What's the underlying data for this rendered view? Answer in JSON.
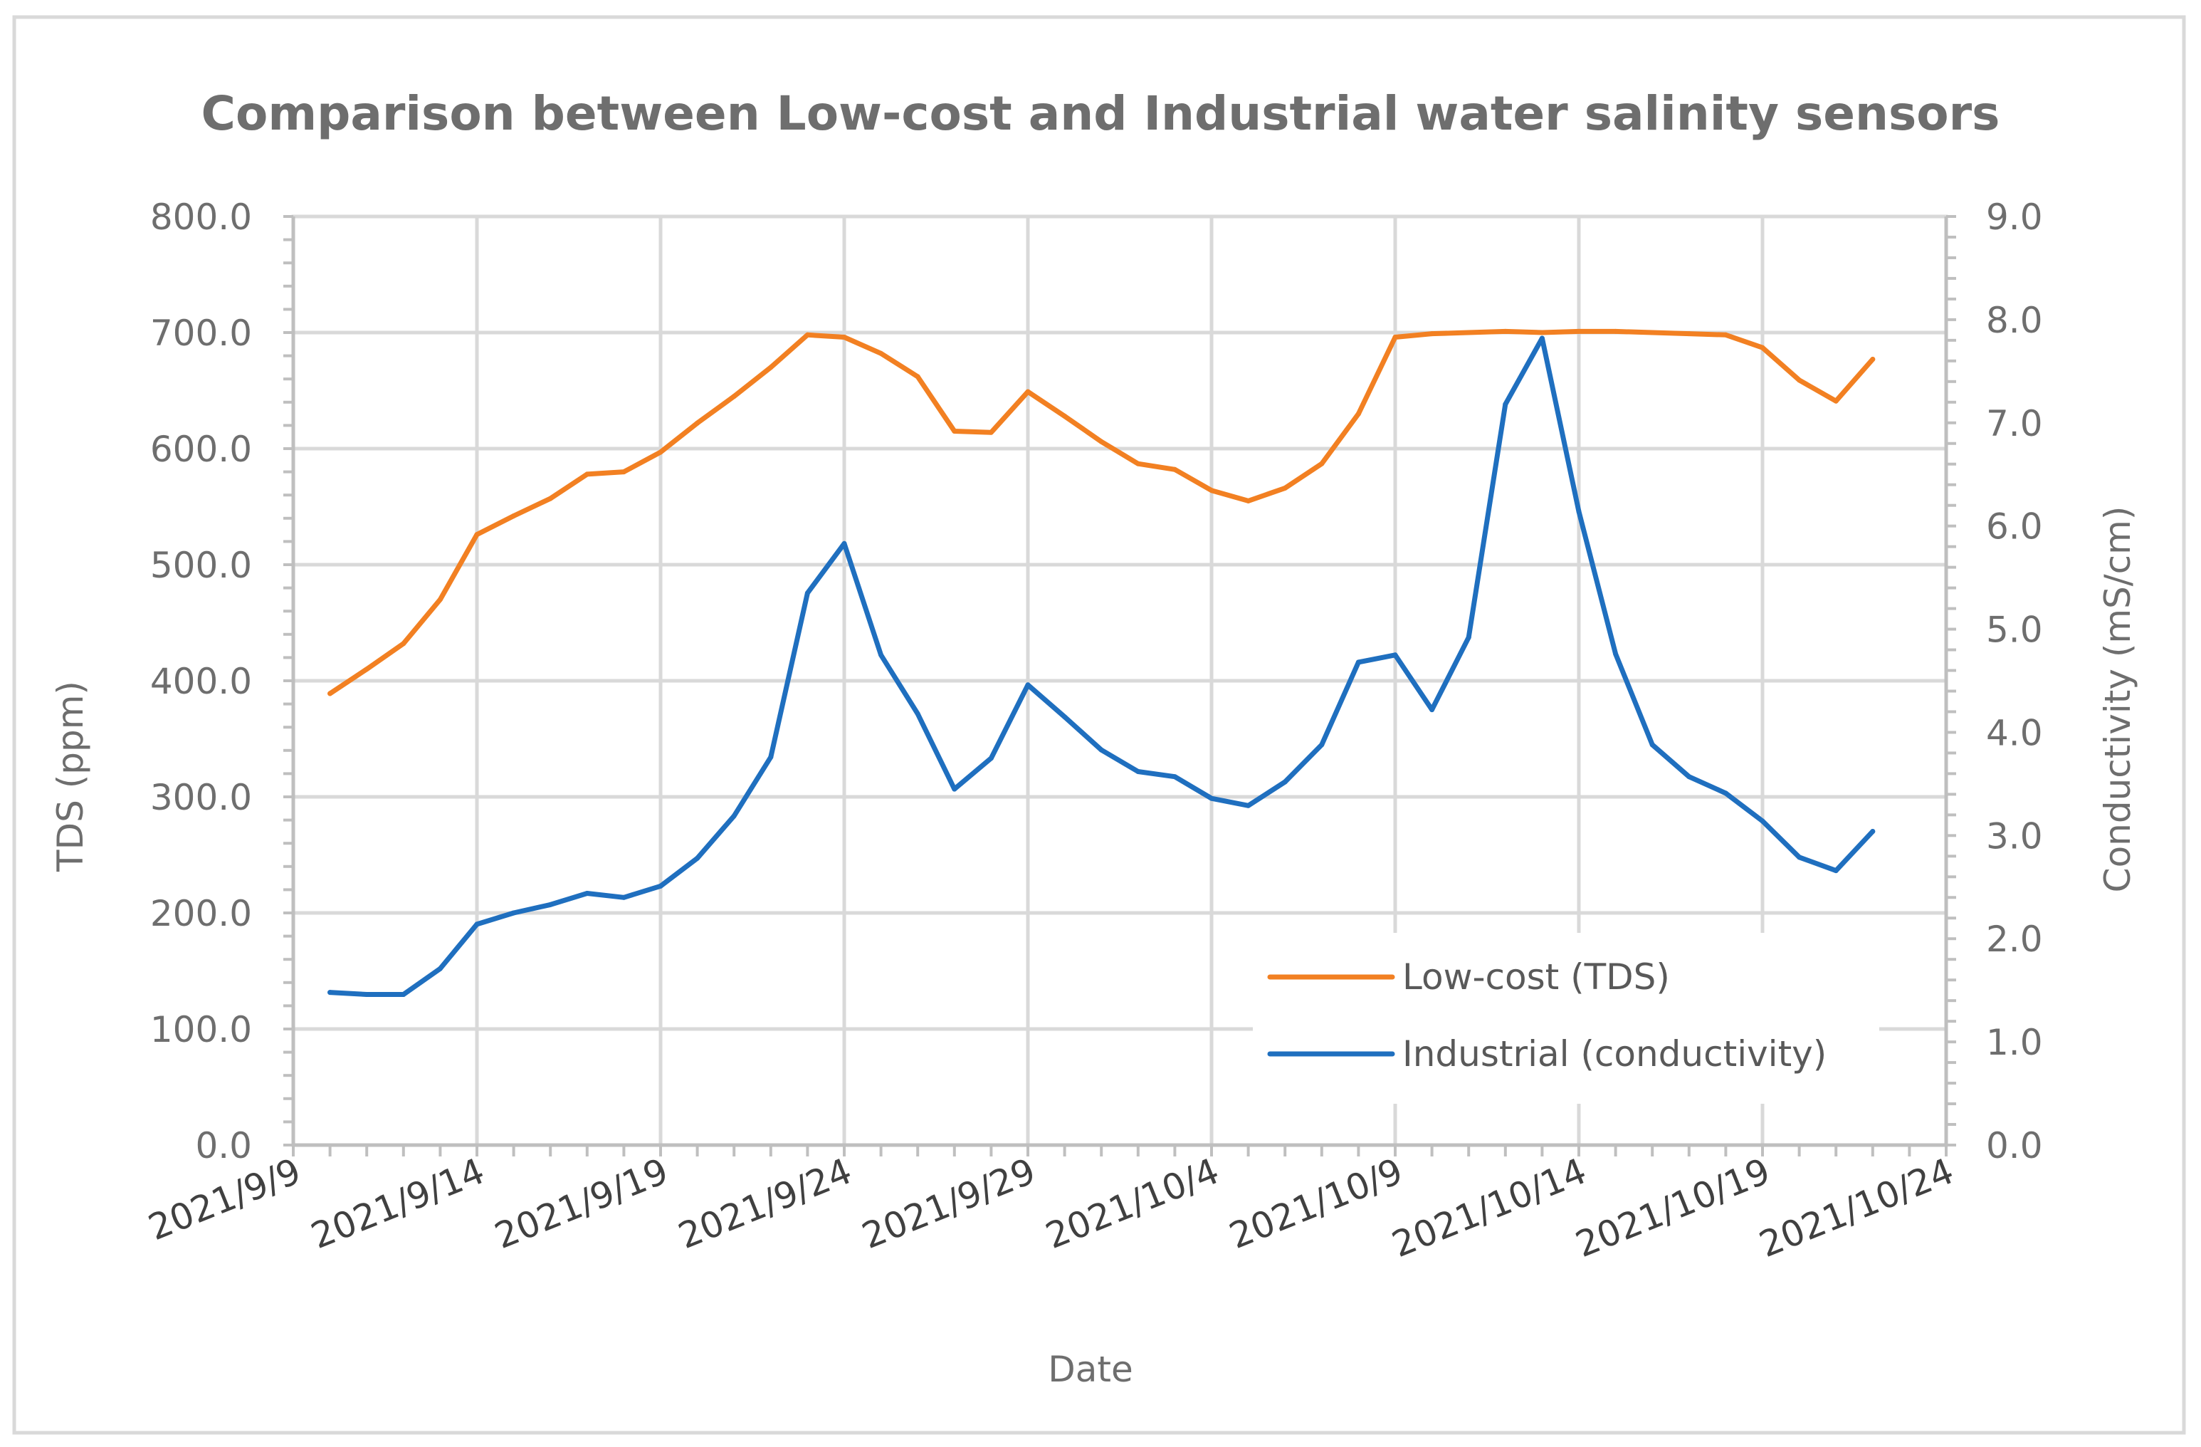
{
  "chart_data": {
    "type": "line",
    "title": "Comparison between Low-cost and Industrial water salinity sensors",
    "xlabel": "Date",
    "ylabel": "TDS (ppm)",
    "y2label": "Conductivity (mS/cm)",
    "ylim": [
      0,
      800
    ],
    "y2lim": [
      0,
      9
    ],
    "yticks": [
      "0.0",
      "100.0",
      "200.0",
      "300.0",
      "400.0",
      "500.0",
      "600.0",
      "700.0",
      "800.0"
    ],
    "y2ticks": [
      "0.0",
      "1.0",
      "2.0",
      "3.0",
      "4.0",
      "5.0",
      "6.0",
      "7.0",
      "8.0",
      "9.0"
    ],
    "xlim_day_index": [
      0,
      45
    ],
    "xticks": [
      {
        "label": "2021/9/9",
        "day": 0
      },
      {
        "label": "2021/9/14",
        "day": 5
      },
      {
        "label": "2021/9/19",
        "day": 10
      },
      {
        "label": "2021/9/24",
        "day": 15
      },
      {
        "label": "2021/9/29",
        "day": 20
      },
      {
        "label": "2021/10/4",
        "day": 25
      },
      {
        "label": "2021/10/9",
        "day": 30
      },
      {
        "label": "2021/10/14",
        "day": 35
      },
      {
        "label": "2021/10/19",
        "day": 40
      },
      {
        "label": "2021/10/24",
        "day": 45
      }
    ],
    "x_days": [
      1,
      2,
      3,
      4,
      5,
      6,
      7,
      8,
      9,
      10,
      11,
      12,
      13,
      14,
      15,
      16,
      17,
      18,
      19,
      20,
      21,
      22,
      23,
      24,
      25,
      26,
      27,
      28,
      29,
      30,
      31,
      32,
      33,
      34,
      35,
      36,
      37,
      38,
      39,
      40,
      41,
      42,
      43
    ],
    "grid": true,
    "legend_position": "bottom-right",
    "series": [
      {
        "name": "Low-cost (TDS)",
        "axis": "left",
        "color": "#f28022",
        "values": [
          389,
          410,
          432,
          470,
          526,
          542,
          557,
          578,
          580,
          597,
          622,
          645,
          670,
          698,
          696,
          682,
          662,
          615,
          614,
          649,
          628,
          606,
          587,
          582,
          564,
          555,
          566,
          587,
          630,
          696,
          699,
          700,
          701,
          700,
          701,
          701,
          700,
          699,
          698,
          687,
          659,
          641,
          677
        ]
      },
      {
        "name": "Industrial (conductivity)",
        "axis": "right",
        "color": "#1f6fbf",
        "values": [
          1.48,
          1.46,
          1.46,
          1.71,
          2.14,
          2.25,
          2.33,
          2.44,
          2.4,
          2.51,
          2.78,
          3.19,
          3.76,
          5.35,
          5.83,
          4.75,
          4.18,
          3.45,
          3.75,
          4.46,
          4.15,
          3.83,
          3.62,
          3.57,
          3.36,
          3.29,
          3.52,
          3.88,
          4.68,
          4.75,
          4.22,
          4.92,
          7.18,
          7.82,
          6.14,
          4.76,
          3.88,
          3.57,
          3.41,
          3.14,
          2.79,
          2.66,
          3.04
        ]
      }
    ]
  }
}
